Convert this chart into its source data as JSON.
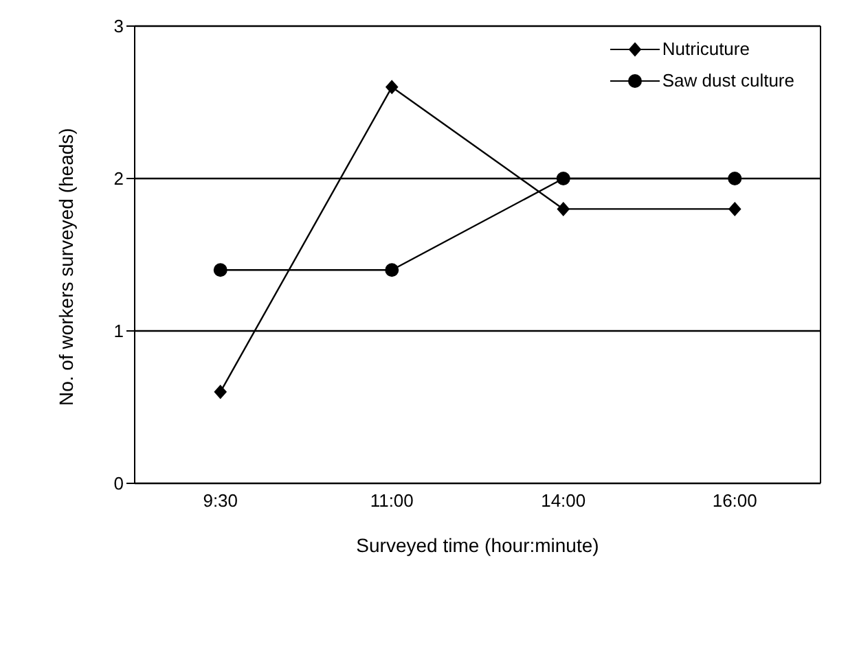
{
  "chart_data": {
    "type": "line",
    "xlabel": "Surveyed time (hour:minute)",
    "ylabel": "No. of workers surveyed (heads)",
    "categories": [
      "9:30",
      "11:00",
      "14:00",
      "16:00"
    ],
    "series": [
      {
        "name": "Nutricuture",
        "color": "#000000",
        "marker": "diamond",
        "values": [
          0.6,
          2.6,
          1.8,
          1.8
        ]
      },
      {
        "name": "Saw dust culture",
        "color": "#000000",
        "marker": "circle",
        "values": [
          1.4,
          1.4,
          2.0,
          2.0
        ]
      }
    ],
    "ylim": [
      0,
      3
    ],
    "yticks": [
      0,
      1,
      2,
      3
    ],
    "grid": "y",
    "legend": "top right",
    "line_style": "solid"
  }
}
